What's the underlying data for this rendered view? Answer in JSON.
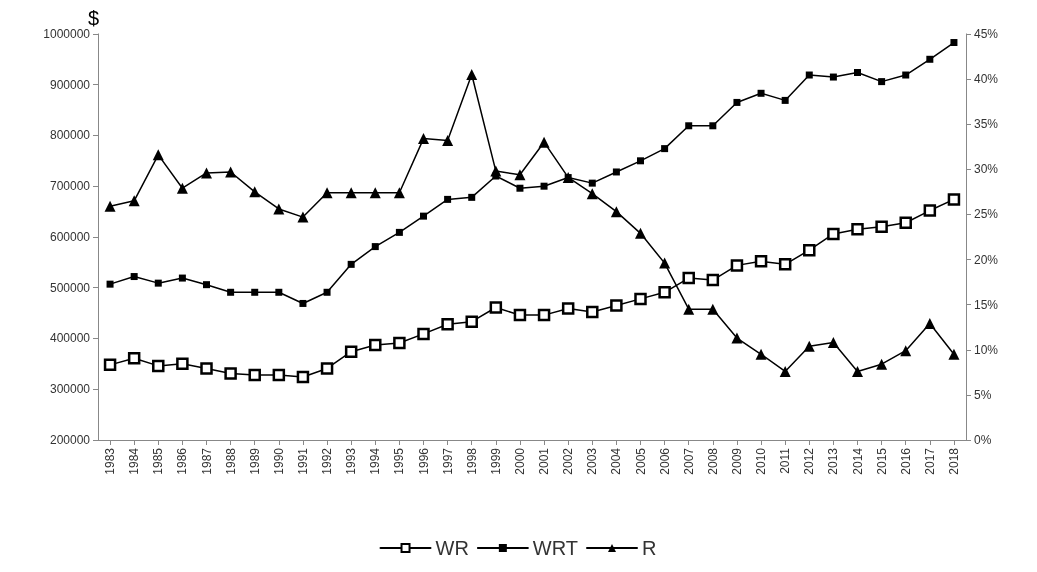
{
  "chart_data": {
    "type": "line",
    "ylabel": "$",
    "categories": [
      "1983",
      "1984",
      "1985",
      "1986",
      "1987",
      "1988",
      "1989",
      "1990",
      "1991",
      "1992",
      "1993",
      "1994",
      "1995",
      "1996",
      "1997",
      "1998",
      "1999",
      "2000",
      "2001",
      "2002",
      "2003",
      "2004",
      "2005",
      "2006",
      "2007",
      "2008",
      "2009",
      "2010",
      "2011",
      "2012",
      "2013",
      "2014",
      "2015",
      "2016",
      "2017",
      "2018"
    ],
    "ylim": [
      200000,
      1000000
    ],
    "yticks": [
      200000,
      300000,
      400000,
      500000,
      600000,
      700000,
      800000,
      900000,
      1000000
    ],
    "y2lim": [
      0,
      45
    ],
    "y2ticks": [
      {
        "value": 0,
        "label": "0%"
      },
      {
        "value": 5,
        "label": "5%"
      },
      {
        "value": 10,
        "label": "10%"
      },
      {
        "value": 15,
        "label": "15%"
      },
      {
        "value": 20,
        "label": "20%"
      },
      {
        "value": 25,
        "label": "25%"
      },
      {
        "value": 30,
        "label": "30%"
      },
      {
        "value": 35,
        "label": "35%"
      },
      {
        "value": 40,
        "label": "40%"
      },
      {
        "value": 45,
        "label": "45%"
      }
    ],
    "grid": false,
    "legend": "bottom",
    "line_style": "solid",
    "series": [
      {
        "name": "WR",
        "color": "#000000",
        "marker": "square",
        "values": [
          348000,
          361000,
          346000,
          350000,
          341000,
          331000,
          328000,
          328000,
          324000,
          341000,
          374000,
          387000,
          391000,
          409000,
          428000,
          433000,
          461000,
          446000,
          446000,
          459000,
          452000,
          465000,
          478000,
          491000,
          519000,
          515000,
          544000,
          552000,
          546000,
          574000,
          606000,
          615000,
          620000,
          628000,
          652000,
          674000
        ]
      },
      {
        "name": "WRT",
        "color": "#000000",
        "marker": "square",
        "values": [
          507000,
          522000,
          509000,
          519000,
          506000,
          491000,
          491000,
          491000,
          469000,
          491000,
          546000,
          581000,
          609000,
          641000,
          674000,
          678000,
          720000,
          696000,
          700000,
          717000,
          706000,
          728000,
          750000,
          774000,
          819000,
          819000,
          865000,
          883000,
          869000,
          919000,
          915000,
          924000,
          906000,
          919000,
          950000,
          983000
        ]
      },
      {
        "name": "R",
        "color": "#000000",
        "marker": "triangle",
        "axis": "y2",
        "values": [
          25.9,
          26.5,
          31.6,
          27.9,
          29.6,
          29.7,
          27.5,
          25.6,
          24.7,
          27.4,
          27.4,
          27.4,
          27.4,
          33.4,
          33.2,
          40.5,
          29.8,
          29.4,
          33.0,
          29.1,
          27.3,
          25.3,
          22.9,
          19.6,
          14.5,
          14.5,
          11.3,
          9.5,
          7.6,
          10.4,
          10.8,
          7.6,
          8.4,
          9.9,
          12.9,
          9.5
        ]
      }
    ]
  }
}
